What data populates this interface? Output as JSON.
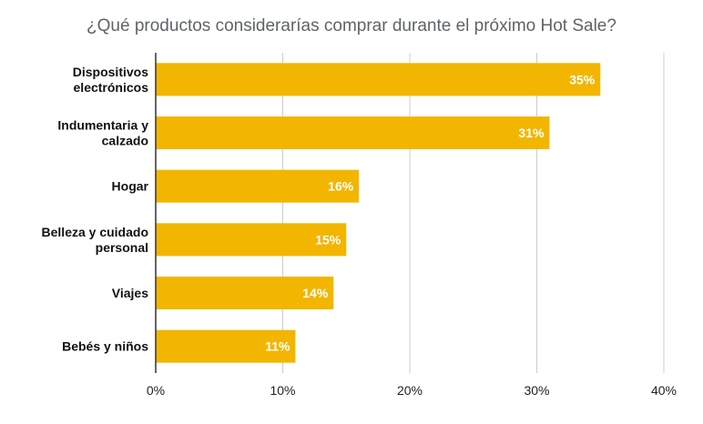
{
  "chart_data": {
    "type": "bar",
    "orientation": "horizontal",
    "title": "¿Qué productos considerarías comprar durante el próximo Hot Sale?",
    "categories": [
      [
        "Dispositivos",
        "electrónicos"
      ],
      [
        "Indumentaria y",
        "calzado"
      ],
      [
        "Hogar"
      ],
      [
        "Belleza y cuidado",
        "personal"
      ],
      [
        "Viajes"
      ],
      [
        "Bebés y niños"
      ]
    ],
    "values": [
      35,
      31,
      16,
      15,
      14,
      11
    ],
    "data_labels": [
      "35%",
      "31%",
      "16%",
      "15%",
      "14%",
      "11%"
    ],
    "xlim": [
      0,
      40
    ],
    "x_ticks": [
      0,
      10,
      20,
      30,
      40
    ],
    "x_tick_labels": [
      "0%",
      "10%",
      "20%",
      "30%",
      "40%"
    ],
    "grid": "vertical",
    "bar_color": "#F2B600",
    "grid_color": "#cccccc",
    "axis_color": "#333333"
  }
}
